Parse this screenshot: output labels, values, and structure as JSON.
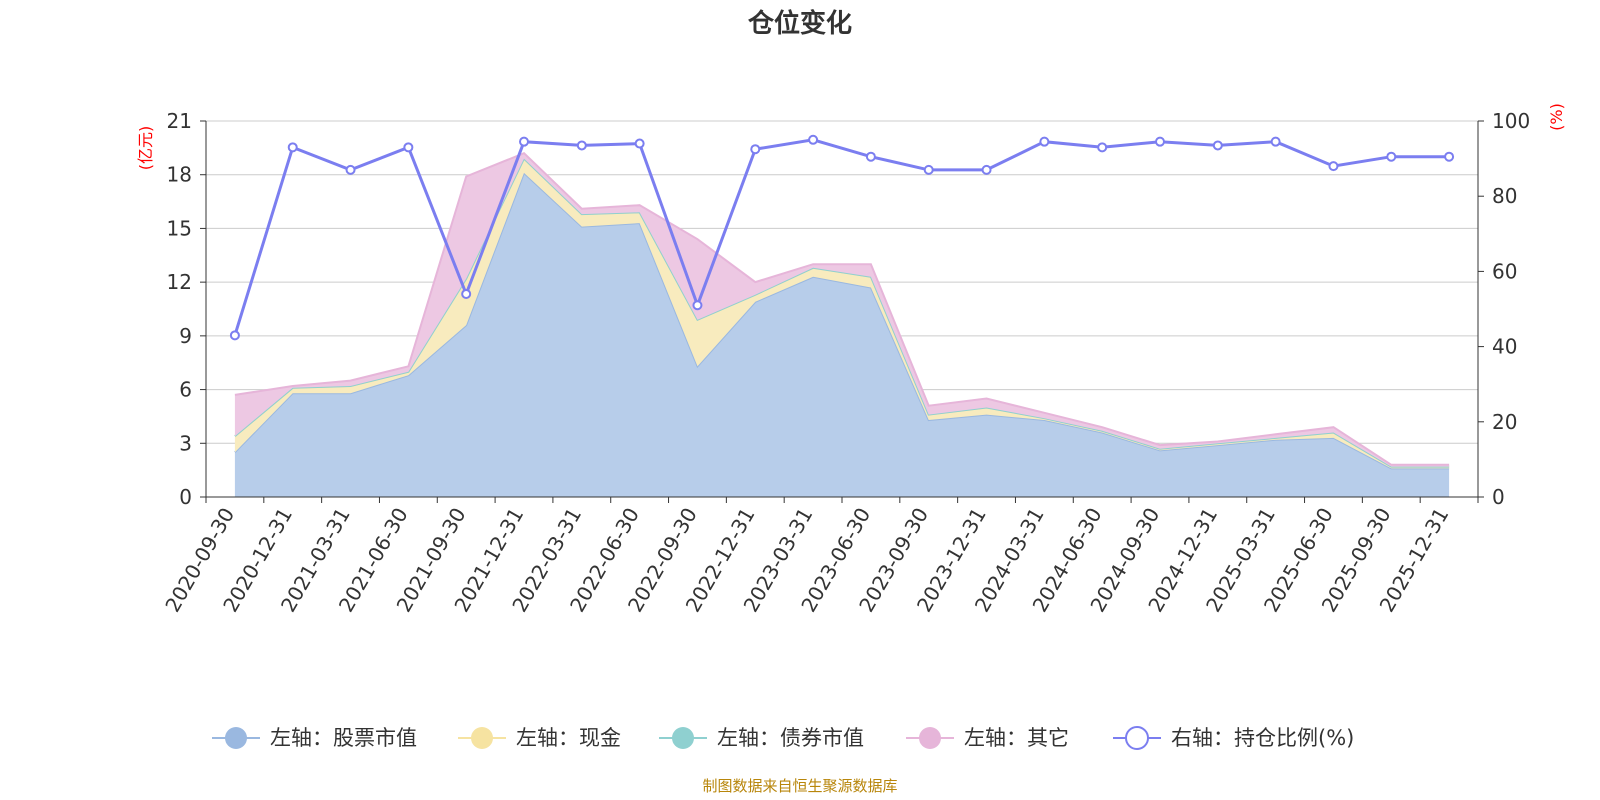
{
  "chart_data": {
    "type": "area",
    "title": "仓位变化",
    "left_axis": {
      "unit": "(亿元)",
      "ylim": [
        0,
        21
      ],
      "ticks": [
        0,
        3,
        6,
        9,
        12,
        15,
        18,
        21
      ]
    },
    "right_axis": {
      "unit": "(%)",
      "ylim": [
        0,
        100
      ],
      "ticks": [
        0,
        20,
        40,
        60,
        80,
        100
      ]
    },
    "categories": [
      "2020-09-30",
      "2020-12-31",
      "2021-03-31",
      "2021-06-30",
      "2021-09-30",
      "2021-12-31",
      "2022-03-31",
      "2022-06-30",
      "2022-09-30",
      "2022-12-31",
      "2023-03-31",
      "2023-06-30",
      "2023-09-30",
      "2023-12-31",
      "2024-03-31",
      "2024-06-30",
      "2024-09-30",
      "2024-12-31",
      "2025-03-31",
      "2025-06-30",
      "2025-09-30",
      "2025-12-31"
    ],
    "series": [
      {
        "name": "左轴：股票市值",
        "axis": "left",
        "stack": true,
        "color": "#9ab8e0",
        "fill": "#b7cdea",
        "values": [
          2.5,
          5.8,
          5.8,
          6.8,
          9.6,
          18.1,
          15.1,
          15.3,
          7.3,
          10.9,
          12.3,
          11.7,
          4.3,
          4.6,
          4.3,
          3.6,
          2.6,
          2.9,
          3.2,
          3.3,
          1.6,
          1.6
        ]
      },
      {
        "name": "左轴：现金",
        "axis": "left",
        "stack": true,
        "color": "#f6e3a1",
        "fill": "#f8ebbe",
        "values": [
          0.9,
          0.3,
          0.4,
          0.2,
          2.6,
          0.8,
          0.7,
          0.6,
          2.6,
          0.4,
          0.5,
          0.6,
          0.3,
          0.4,
          0.1,
          0.1,
          0.1,
          0.1,
          0.1,
          0.3,
          0.1,
          0.1
        ]
      },
      {
        "name": "左轴：债券市值",
        "axis": "left",
        "stack": true,
        "color": "#8fd0d0",
        "fill": "#b4e0e0",
        "values": [
          0,
          0,
          0,
          0,
          0,
          0,
          0,
          0,
          0,
          0,
          0,
          0,
          0,
          0,
          0,
          0,
          0,
          0,
          0,
          0,
          0,
          0
        ]
      },
      {
        "name": "左轴：其它",
        "axis": "left",
        "stack": true,
        "color": "#e6b5d9",
        "fill": "#edc8e3",
        "values": [
          2.3,
          0.1,
          0.3,
          0.3,
          5.7,
          0.3,
          0.3,
          0.4,
          4.5,
          0.7,
          0.2,
          0.7,
          0.5,
          0.5,
          0.3,
          0.2,
          0.2,
          0.1,
          0.2,
          0.3,
          0.1,
          0.1
        ]
      },
      {
        "name": "右轴：持仓比例(%)",
        "axis": "right",
        "stack": false,
        "color": "#7b7ef0",
        "values": [
          43,
          93,
          87,
          93,
          54,
          94.5,
          93.5,
          94,
          51,
          92.5,
          95,
          90.5,
          87,
          87,
          94.5,
          93,
          94.5,
          93.5,
          94.5,
          88,
          90.5,
          90.5
        ]
      }
    ],
    "grid": true,
    "legend_position": "bottom"
  },
  "footer": {
    "source": "制图数据来自恒生聚源数据库"
  }
}
